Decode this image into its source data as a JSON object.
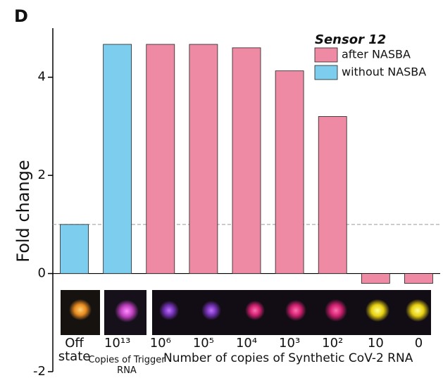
{
  "chart_data": {
    "type": "bar",
    "panel_label": "D",
    "y_label": "Fold change",
    "categories": [
      "Off state",
      "10¹³",
      "10⁶",
      "10⁵",
      "10⁴",
      "10³",
      "10²",
      "10",
      "0"
    ],
    "group_labels": [
      "Copies of Trigger RNA",
      "Number of copies of Synthetic CoV-2 RNA"
    ],
    "legend_title": "Sensor 12",
    "series": [
      {
        "name": "after NASBA",
        "color": "#ee8aa4",
        "values": [
          null,
          null,
          4.67,
          4.67,
          4.6,
          4.13,
          3.2,
          -0.2,
          -0.2
        ]
      },
      {
        "name": "without NASBA",
        "color": "#7dcdee",
        "values": [
          1.0,
          4.67,
          null,
          null,
          null,
          null,
          null,
          null,
          null
        ]
      }
    ],
    "ylim": [
      -2,
      5
    ],
    "yticks": [
      -2,
      0,
      2,
      4
    ],
    "hline": 1
  }
}
